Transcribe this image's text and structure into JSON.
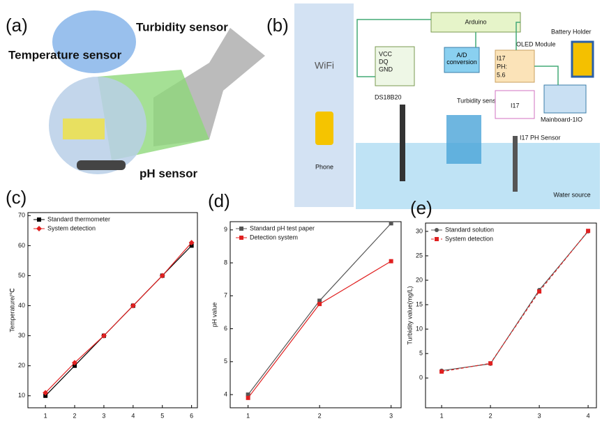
{
  "panel_a": {
    "label": "(a)",
    "texts": [
      "Turbidity sensor",
      "Temperature sensor",
      "pH sensor"
    ]
  },
  "panel_b": {
    "label": "(b)",
    "wifi": "WiFi",
    "arduino": "Arduino",
    "oled": "OLED Module",
    "battery": "Battery Holder",
    "ad": "A/D conversion",
    "pins": [
      "VCC",
      "DQ",
      "GND"
    ],
    "ds": "DS18B20",
    "turbidity": "Turbidity sensing",
    "mainboard": "Mainboard-1IO",
    "ph_sensor": "I17 PH Sensor",
    "water": "Water source",
    "phone": "Phone",
    "oled_text": [
      "I17",
      "PH:",
      "5.6"
    ],
    "i17": "I17"
  },
  "chart_data": [
    {
      "type": "line",
      "panel_label": "(c)",
      "y_label": "Temperature/℃",
      "x": [
        1,
        2,
        3,
        4,
        5,
        6
      ],
      "xlim": [
        0.4,
        6.2
      ],
      "xticks": [
        1,
        2,
        3,
        4,
        5,
        6
      ],
      "ylim": [
        6,
        71
      ],
      "yticks": [
        10,
        20,
        30,
        40,
        50,
        60,
        70
      ],
      "legend": "upper left",
      "series": [
        {
          "name": "Standard thermometer",
          "color": "#000000",
          "marker": "square",
          "values": [
            10,
            20,
            30,
            40,
            50,
            60
          ]
        },
        {
          "name": "System detection",
          "color": "#e02020",
          "marker": "diamond",
          "values": [
            11,
            21,
            30,
            40,
            50,
            61
          ]
        }
      ]
    },
    {
      "type": "line",
      "panel_label": "(d)",
      "y_label": "pH value",
      "x": [
        1,
        2,
        3
      ],
      "xlim": [
        0.75,
        3.14
      ],
      "xticks": [
        1,
        2,
        3
      ],
      "ylim": [
        3.6,
        9.25
      ],
      "yticks": [
        4,
        5,
        6,
        7,
        8,
        9
      ],
      "legend": "upper left",
      "series": [
        {
          "name": "Standard pH test paper",
          "color": "#555555",
          "marker": "square",
          "values": [
            4.0,
            6.85,
            9.2
          ]
        },
        {
          "name": "Detection system",
          "color": "#e02020",
          "marker": "square",
          "values": [
            3.9,
            6.75,
            8.05
          ]
        }
      ]
    },
    {
      "type": "line",
      "panel_label": "(e)",
      "y_label": "Turbidity value(mg/L)",
      "x": [
        1,
        2,
        3,
        4
      ],
      "xlim": [
        0.67,
        4.17
      ],
      "xticks": [
        1,
        2,
        3,
        4
      ],
      "ylim": [
        -6.1,
        31.7
      ],
      "yticks": [
        0,
        5,
        10,
        15,
        20,
        25,
        30
      ],
      "legend": "upper left",
      "series": [
        {
          "name": "Standard solution",
          "color": "#555555",
          "marker": "circle",
          "values": [
            1.5,
            2.9,
            18,
            30
          ]
        },
        {
          "name": "System detection",
          "color": "#e02020",
          "marker": "square",
          "dash": true,
          "values": [
            1.3,
            3.0,
            17.7,
            30.1
          ]
        }
      ]
    }
  ]
}
